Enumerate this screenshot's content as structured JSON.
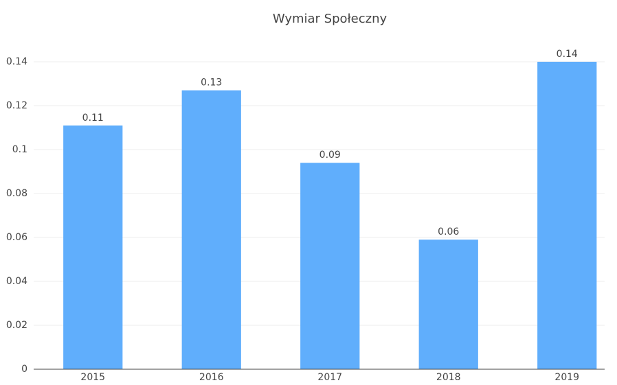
{
  "chart_data": {
    "type": "bar",
    "title": "Wymiar Społeczny",
    "categories": [
      "2015",
      "2016",
      "2017",
      "2018",
      "2019"
    ],
    "values": [
      0.111,
      0.127,
      0.094,
      0.059,
      0.14
    ],
    "value_labels": [
      "0.11",
      "0.13",
      "0.09",
      "0.06",
      "0.14"
    ],
    "color": "#60aefc",
    "ylim": [
      0,
      0.147
    ],
    "yticks": [
      0,
      0.02,
      0.04,
      0.06,
      0.08,
      0.1,
      0.12,
      0.14
    ],
    "grid": true
  }
}
